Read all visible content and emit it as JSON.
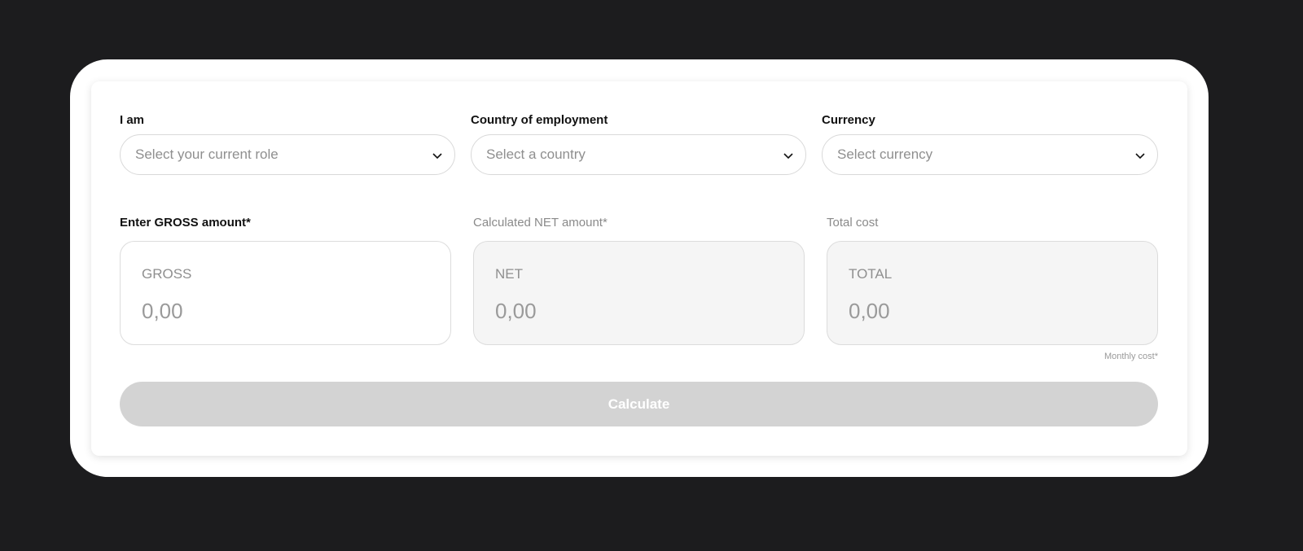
{
  "form": {
    "role": {
      "label": "I am",
      "placeholder": "Select your current role"
    },
    "country": {
      "label": "Country of employment",
      "placeholder": "Select a country"
    },
    "currency": {
      "label": "Currency",
      "placeholder": "Select currency"
    },
    "gross": {
      "label": "Enter GROSS amount*",
      "caption": "GROSS",
      "value": "0,00"
    },
    "net": {
      "label": "Calculated NET amount*",
      "caption": "NET",
      "value": "0,00"
    },
    "total": {
      "label": "Total cost",
      "caption": "TOTAL",
      "value": "0,00",
      "note": "Monthly cost*"
    },
    "calculate_label": "Calculate"
  },
  "colors": {
    "background": "#1c1c1e",
    "button_disabled": "#d3d3d3",
    "readonly_field": "#f5f5f5"
  },
  "icons": {
    "dropdown": "chevron-down-icon"
  }
}
